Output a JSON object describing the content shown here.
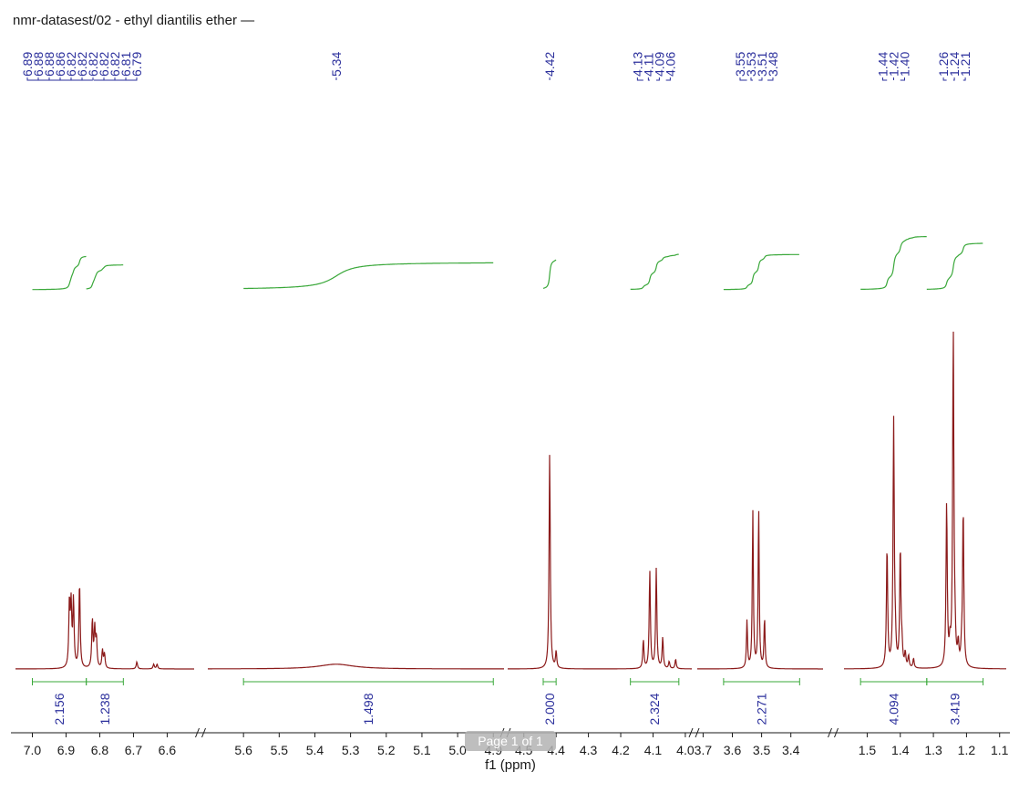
{
  "title": "nmr-datasest/02 - ethyl diantilis ether —",
  "watermark": "Page 1 of 1",
  "colors": {
    "spectrum": "#8b1a1a",
    "integral": "#3aa83a",
    "label": "#2b2f9c",
    "axis": "#1a1a1a"
  },
  "chart_data": {
    "type": "line",
    "title": "nmr-datasest/02 - ethyl diantilis ether —",
    "xlabel": "f1 (ppm)",
    "ylabel": "",
    "x_reversed": true,
    "axis_breaks": true,
    "segments": [
      {
        "xmax": 7.05,
        "xmin": 6.52,
        "ticks": [
          7.0,
          6.9,
          6.8,
          6.7,
          6.6
        ]
      },
      {
        "xmax": 5.7,
        "xmin": 4.87,
        "ticks": [
          5.6,
          5.5,
          5.4,
          5.3,
          5.2,
          5.1,
          5.0,
          4.9
        ]
      },
      {
        "xmax": 4.55,
        "xmin": 3.98,
        "ticks": [
          4.5,
          4.4,
          4.3,
          4.2,
          4.1,
          4.0
        ]
      },
      {
        "xmax": 3.72,
        "xmin": 3.29,
        "ticks": [
          3.7,
          3.6,
          3.5,
          3.4
        ]
      },
      {
        "xmax": 1.57,
        "xmin": 1.08,
        "ticks": [
          1.5,
          1.4,
          1.3,
          1.2,
          1.1
        ]
      }
    ],
    "peak_groups": [
      {
        "labels": [
          "6.89",
          "6.88",
          "6.88",
          "6.86",
          "6.82",
          "6.82",
          "6.82",
          "6.82",
          "6.82",
          "6.81",
          "6.79"
        ],
        "positions": [
          6.89,
          6.88,
          6.876,
          6.86,
          6.824,
          6.822,
          6.82,
          6.818,
          6.816,
          6.81,
          6.79
        ]
      },
      {
        "labels": [
          "5.34"
        ],
        "positions": [
          5.34
        ]
      },
      {
        "labels": [
          "4.42"
        ],
        "positions": [
          4.42
        ]
      },
      {
        "labels": [
          "4.13",
          "4.11",
          "4.09",
          "4.06"
        ],
        "positions": [
          4.13,
          4.11,
          4.09,
          4.06
        ]
      },
      {
        "labels": [
          "3.55",
          "3.53",
          "3.51",
          "3.48"
        ],
        "positions": [
          3.55,
          3.53,
          3.51,
          3.48
        ]
      },
      {
        "labels": [
          "1.44",
          "1.42",
          "1.40"
        ],
        "positions": [
          1.44,
          1.42,
          1.4
        ]
      },
      {
        "labels": [
          "1.26",
          "1.24",
          "1.21"
        ],
        "positions": [
          1.26,
          1.24,
          1.21
        ]
      }
    ],
    "integrals": [
      {
        "label": "2.156",
        "from": 7.0,
        "to": 6.84
      },
      {
        "label": "1.238",
        "from": 6.84,
        "to": 6.73
      },
      {
        "label": "1.498",
        "from": 5.6,
        "to": 4.9
      },
      {
        "label": "2.000",
        "from": 4.44,
        "to": 4.4
      },
      {
        "label": "2.324",
        "from": 4.17,
        "to": 4.02
      },
      {
        "label": "2.271",
        "from": 3.63,
        "to": 3.37
      },
      {
        "label": "4.094",
        "from": 1.52,
        "to": 1.32
      },
      {
        "label": "3.419",
        "from": 1.32,
        "to": 1.15
      }
    ],
    "peaks": [
      {
        "x": 6.89,
        "y": 0.27
      },
      {
        "x": 6.885,
        "y": 0.25
      },
      {
        "x": 6.878,
        "y": 0.28
      },
      {
        "x": 6.86,
        "y": 0.36
      },
      {
        "x": 6.822,
        "y": 0.2
      },
      {
        "x": 6.815,
        "y": 0.16
      },
      {
        "x": 6.81,
        "y": 0.12
      },
      {
        "x": 6.792,
        "y": 0.075
      },
      {
        "x": 6.786,
        "y": 0.06
      },
      {
        "x": 6.69,
        "y": 0.03
      },
      {
        "x": 6.64,
        "y": 0.02
      },
      {
        "x": 6.63,
        "y": 0.02
      },
      {
        "x": 4.42,
        "y": 0.91
      },
      {
        "x": 4.4,
        "y": 0.07
      },
      {
        "x": 4.13,
        "y": 0.12
      },
      {
        "x": 4.11,
        "y": 0.41
      },
      {
        "x": 4.09,
        "y": 0.42
      },
      {
        "x": 4.07,
        "y": 0.13
      },
      {
        "x": 4.05,
        "y": 0.03
      },
      {
        "x": 4.03,
        "y": 0.04
      },
      {
        "x": 3.55,
        "y": 0.2
      },
      {
        "x": 3.53,
        "y": 0.66
      },
      {
        "x": 3.51,
        "y": 0.67
      },
      {
        "x": 3.49,
        "y": 0.21
      },
      {
        "x": 1.44,
        "y": 0.51
      },
      {
        "x": 1.42,
        "y": 1.04
      },
      {
        "x": 1.4,
        "y": 0.5
      },
      {
        "x": 1.415,
        "y": 0.09
      },
      {
        "x": 1.395,
        "y": 0.08
      },
      {
        "x": 1.385,
        "y": 0.06
      },
      {
        "x": 1.375,
        "y": 0.05
      },
      {
        "x": 1.36,
        "y": 0.04
      },
      {
        "x": 1.26,
        "y": 0.69
      },
      {
        "x": 1.24,
        "y": 1.42
      },
      {
        "x": 1.21,
        "y": 0.67
      },
      {
        "x": 1.25,
        "y": 0.08
      },
      {
        "x": 1.235,
        "y": 0.1
      },
      {
        "x": 1.225,
        "y": 0.09
      },
      {
        "x": 1.215,
        "y": 0.06
      }
    ],
    "broad_peaks": [
      {
        "x": 5.34,
        "y": 0.02,
        "width": 0.12
      }
    ]
  }
}
